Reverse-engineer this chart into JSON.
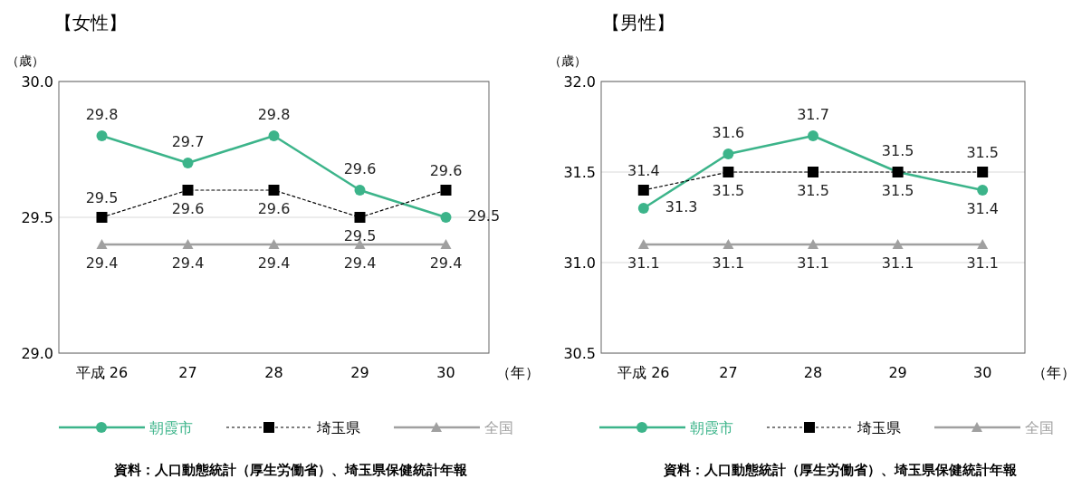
{
  "chart_data": [
    {
      "type": "line",
      "title": "【女性】",
      "ylabel": "（歳）",
      "xlabel": "（年）",
      "categories": [
        "平成 26",
        "27",
        "28",
        "29",
        "30"
      ],
      "ylim": [
        29,
        30
      ],
      "yticks": [
        {
          "value": 29,
          "label": "29.0"
        },
        29.5,
        {
          "value": 30,
          "label": "30.0"
        }
      ],
      "grid": "y",
      "legend": "bottom",
      "data_labels": true,
      "series": [
        {
          "name": "朝霞市",
          "color": "#3cb48a",
          "marker": "circle",
          "line_style": "solid",
          "values": [
            29.8,
            29.7,
            29.8,
            29.6,
            29.5
          ]
        },
        {
          "name": "埼玉県",
          "color": "#000000",
          "marker": "square",
          "line_style": "dotted",
          "values": [
            29.5,
            29.6,
            29.6,
            29.5,
            29.6
          ]
        },
        {
          "name": "全国",
          "color": "#a0a0a0",
          "marker": "triangle",
          "line_style": "solid",
          "values": [
            29.4,
            29.4,
            29.4,
            29.4,
            29.4
          ]
        }
      ],
      "annotations": [
        "資料：人口動態統計（厚生労働省）、埼玉県保健統計年報"
      ]
    },
    {
      "type": "line",
      "title": "【男性】",
      "ylabel": "（歳）",
      "xlabel": "（年）",
      "categories": [
        "平成 26",
        "27",
        "28",
        "29",
        "30"
      ],
      "ylim": [
        30.5,
        32
      ],
      "yticks": [
        30.5,
        {
          "value": 31,
          "label": "31.0"
        },
        31.5,
        {
          "value": 32,
          "label": "32.0"
        }
      ],
      "grid": "y",
      "legend": "bottom",
      "data_labels": true,
      "series": [
        {
          "name": "朝霞市",
          "color": "#3cb48a",
          "marker": "circle",
          "line_style": "solid",
          "values": [
            31.3,
            31.6,
            31.7,
            31.5,
            31.4
          ]
        },
        {
          "name": "埼玉県",
          "color": "#000000",
          "marker": "square",
          "line_style": "dotted",
          "values": [
            31.4,
            31.5,
            31.5,
            31.5,
            31.5
          ]
        },
        {
          "name": "全国",
          "color": "#a0a0a0",
          "marker": "triangle",
          "line_style": "solid",
          "values": [
            31.1,
            31.1,
            31.1,
            31.1,
            31.1
          ]
        }
      ],
      "annotations": [
        "資料：人口動態統計（厚生労働省）、埼玉県保健統計年報"
      ]
    }
  ]
}
